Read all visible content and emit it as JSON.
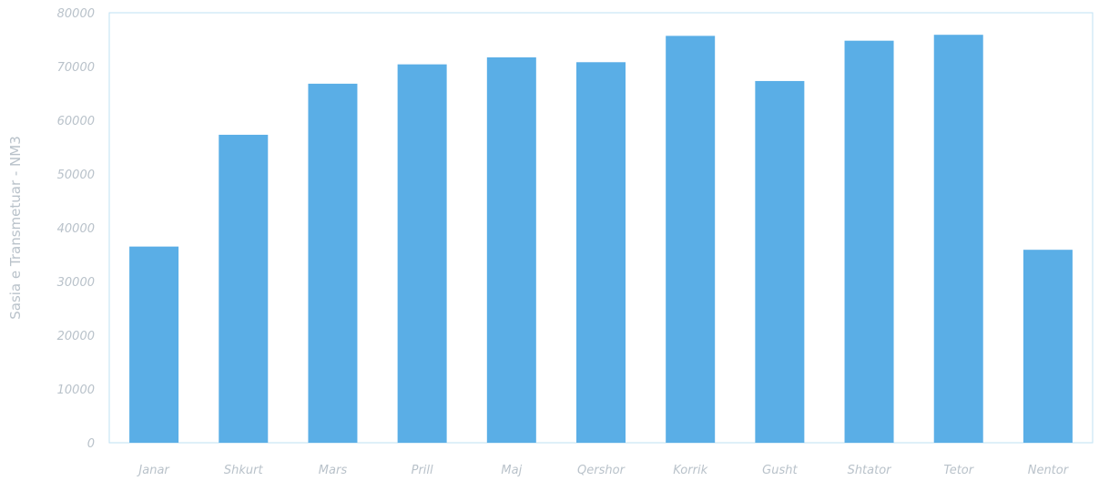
{
  "chart_data": {
    "type": "bar",
    "title": "",
    "xlabel": "",
    "ylabel": "Sasia e Transmetuar - NM3",
    "categories": [
      "Janar",
      "Shkurt",
      "Mars",
      "Prill",
      "Maj",
      "Qershor",
      "Korrik",
      "Gusht",
      "Shtator",
      "Tetor",
      "Nentor"
    ],
    "values": [
      36500,
      57300,
      66800,
      70400,
      71700,
      70800,
      75700,
      67300,
      74800,
      75900,
      35900
    ],
    "ylim": [
      0,
      80000
    ],
    "yticks": [
      "0",
      "10000",
      "20000",
      "30000",
      "40000",
      "50000",
      "60000",
      "70000",
      "80000"
    ],
    "grid": false,
    "legend": "none",
    "bar_color": "#5aaee6"
  }
}
